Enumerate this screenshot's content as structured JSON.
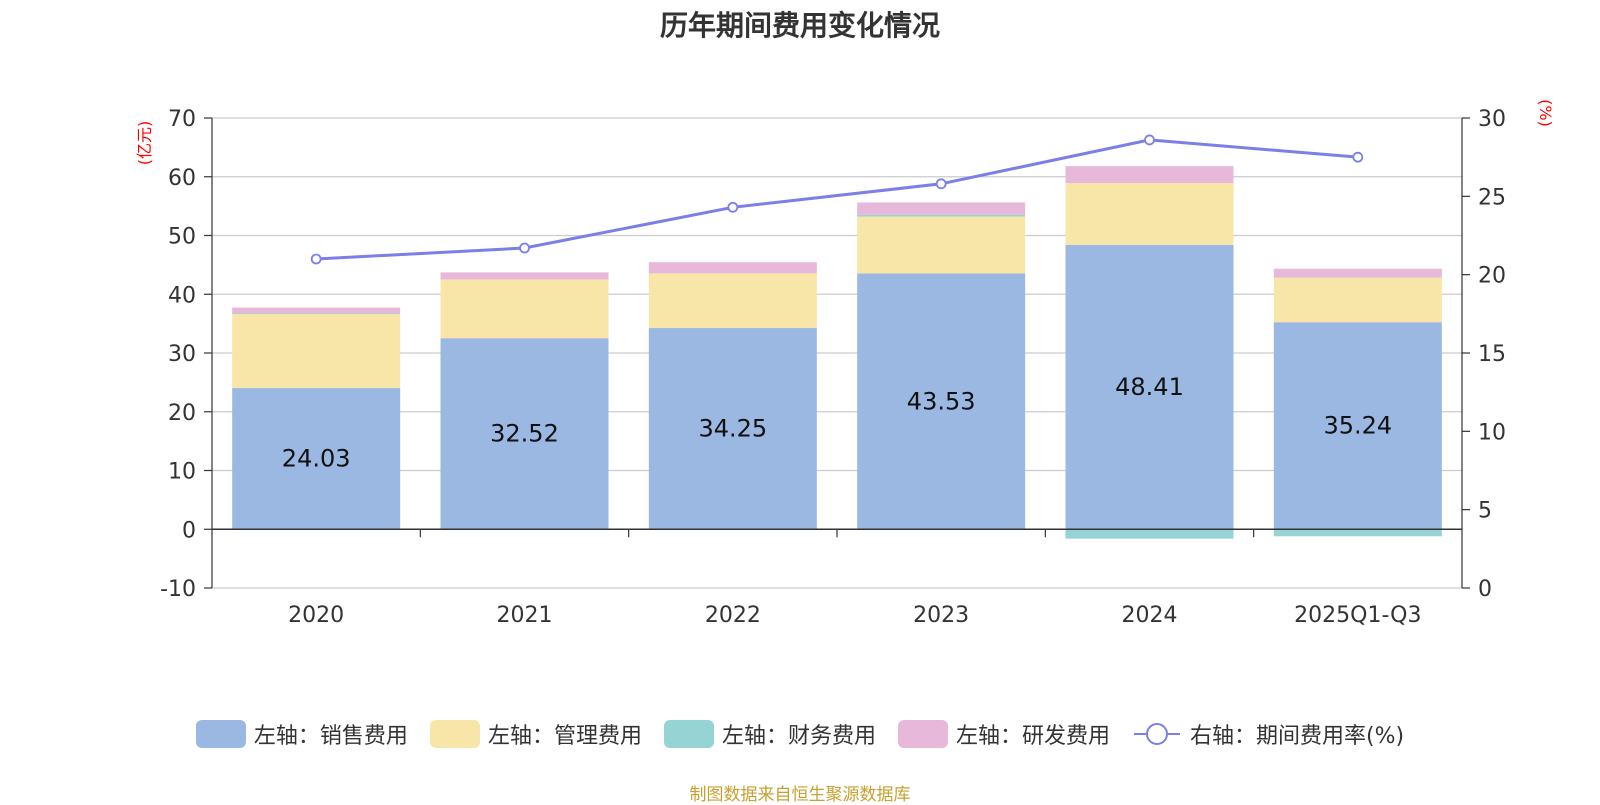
{
  "chart_data": {
    "type": "bar",
    "title": "历年期间费用变化情况",
    "categories": [
      "2020",
      "2021",
      "2022",
      "2023",
      "2024",
      "2025Q1-Q3"
    ],
    "left_axis": {
      "unit": "(亿元)",
      "ylim": [
        -10,
        70
      ],
      "ticks": [
        70,
        60,
        50,
        40,
        30,
        20,
        10,
        0,
        -10
      ]
    },
    "right_axis": {
      "unit": "(%)",
      "ylim": [
        0,
        30
      ],
      "ticks": [
        30,
        25,
        20,
        15,
        10,
        5,
        0
      ]
    },
    "series": [
      {
        "name": "左轴：销售费用",
        "axis": "left",
        "stack": "fee",
        "color": "#9bb8e2",
        "values": [
          24.03,
          32.52,
          34.25,
          43.53,
          48.41,
          35.24
        ],
        "show_labels": true
      },
      {
        "name": "左轴：管理费用",
        "axis": "left",
        "stack": "fee",
        "color": "#f7e6a7",
        "values": [
          12.6,
          10.0,
          9.3,
          9.7,
          10.5,
          7.6
        ]
      },
      {
        "name": "左轴：财务费用",
        "axis": "left",
        "stack": "fee",
        "color": "#96d3d4",
        "values": [
          0.1,
          0.0,
          -0.1,
          0.3,
          -1.6,
          -1.2
        ]
      },
      {
        "name": "左轴：研发费用",
        "axis": "left",
        "stack": "fee",
        "color": "#e7b8da",
        "values": [
          1.0,
          1.2,
          1.9,
          2.1,
          2.9,
          1.5
        ]
      },
      {
        "name": "右轴：期间费用率(%)",
        "axis": "right",
        "type": "line",
        "color": "#7b7fe8",
        "values": [
          21.0,
          21.7,
          24.3,
          25.8,
          28.6,
          27.5
        ]
      }
    ],
    "grid": true,
    "legend_position": "bottom"
  },
  "footer": {
    "source": "制图数据来自恒生聚源数据库"
  }
}
